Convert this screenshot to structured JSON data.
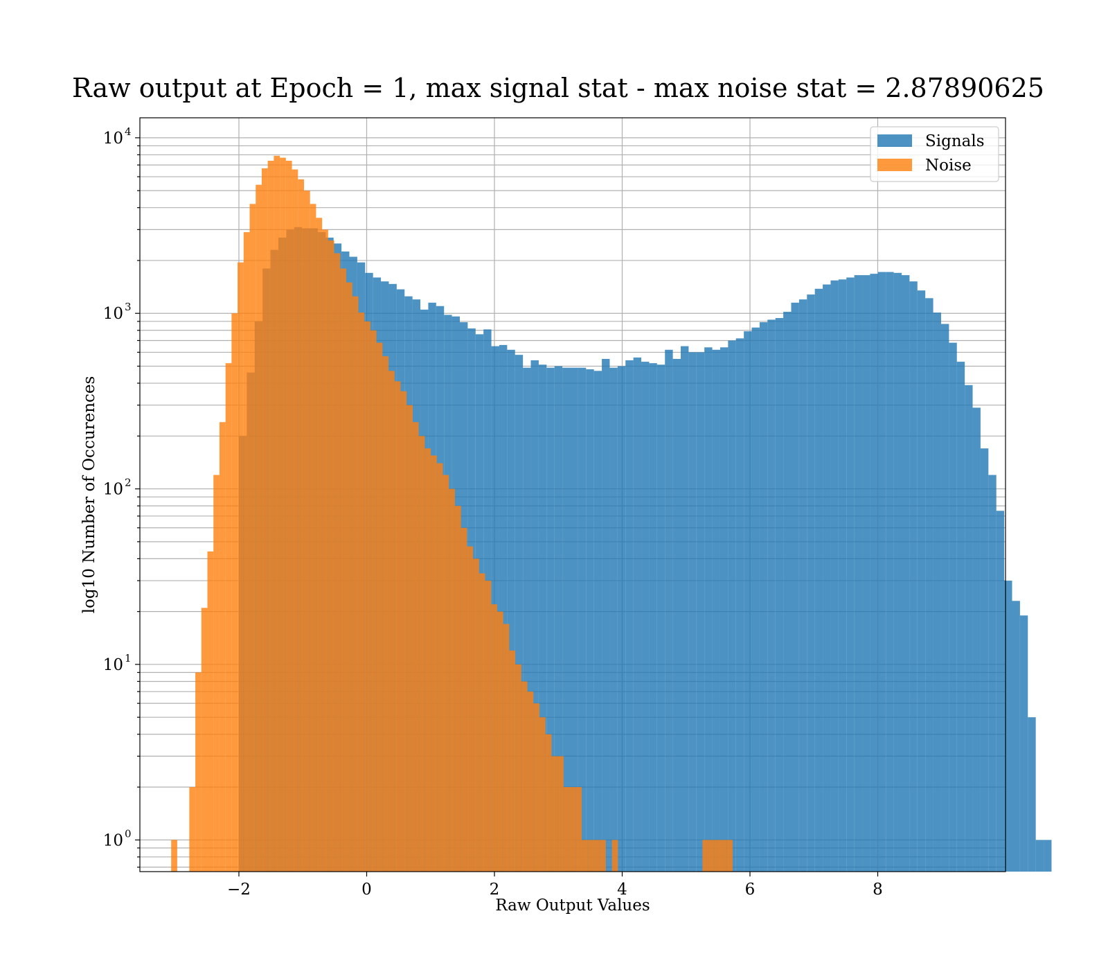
{
  "chart_data": {
    "type": "histogram",
    "title": "Raw output at Epoch = 1, max signal stat - max noise stat = 2.87890625",
    "xlabel": "Raw Output Values",
    "ylabel": "log10 Number of Occurences",
    "xlim": [
      -3.55,
      10.0
    ],
    "ylim": [
      0.66,
      13000
    ],
    "yscale": "log",
    "grid": true,
    "legend": {
      "position": "top-right"
    },
    "x_ticks": [
      {
        "value": -2,
        "label": "−2"
      },
      {
        "value": 0,
        "label": "0"
      },
      {
        "value": 2,
        "label": "2"
      },
      {
        "value": 4,
        "label": "4"
      },
      {
        "value": 6,
        "label": "6"
      },
      {
        "value": 8,
        "label": "8"
      }
    ],
    "y_ticks": [
      {
        "value": 1,
        "base": "10",
        "exp": "0"
      },
      {
        "value": 10,
        "base": "10",
        "exp": "1"
      },
      {
        "value": 100,
        "base": "10",
        "exp": "2"
      },
      {
        "value": 1000,
        "base": "10",
        "exp": "3"
      },
      {
        "value": 10000,
        "base": "10",
        "exp": "4"
      }
    ],
    "series": [
      {
        "name": "Signals",
        "color": "#1f77b4",
        "alpha": 0.8,
        "bin_start": -2.0,
        "bin_width": 0.1235,
        "values": [
          200,
          460,
          900,
          1800,
          2300,
          2700,
          3000,
          3100,
          3050,
          3050,
          2900,
          2700,
          2500,
          2250,
          2100,
          1950,
          1700,
          1600,
          1520,
          1470,
          1370,
          1250,
          1200,
          1050,
          1150,
          1100,
          980,
          960,
          890,
          820,
          760,
          810,
          650,
          660,
          620,
          580,
          490,
          540,
          510,
          490,
          500,
          490,
          490,
          490,
          480,
          470,
          550,
          490,
          500,
          540,
          560,
          530,
          520,
          510,
          620,
          550,
          650,
          600,
          600,
          640,
          620,
          640,
          700,
          720,
          790,
          830,
          890,
          920,
          940,
          1020,
          1150,
          1200,
          1280,
          1380,
          1460,
          1540,
          1560,
          1600,
          1650,
          1650,
          1680,
          1720,
          1720,
          1700,
          1650,
          1520,
          1350,
          1220,
          1010,
          870,
          680,
          530,
          390,
          290,
          170,
          120,
          75,
          30,
          23,
          19,
          5,
          1,
          1
        ]
      },
      {
        "name": "Noise",
        "color": "#ff7f0e",
        "alpha": 0.8,
        "bin_start": -3.06,
        "bin_width": 0.0945,
        "values": [
          1,
          0,
          0,
          2,
          9,
          21,
          44,
          120,
          240,
          520,
          1000,
          1950,
          2900,
          4200,
          5400,
          6700,
          7400,
          7900,
          7700,
          7400,
          6600,
          5800,
          5000,
          4200,
          3500,
          3000,
          2600,
          2200,
          1800,
          1500,
          1250,
          1010,
          900,
          800,
          680,
          570,
          470,
          410,
          360,
          300,
          240,
          200,
          170,
          155,
          140,
          120,
          100,
          80,
          60,
          47,
          40,
          33,
          30,
          22,
          20,
          17,
          12,
          10,
          8,
          7,
          6,
          5,
          4,
          3,
          3,
          2,
          2,
          2,
          1,
          1,
          1,
          1,
          0,
          1,
          0,
          0,
          0,
          0,
          0,
          0,
          0,
          0,
          0,
          0,
          0,
          0,
          0,
          0,
          1,
          1,
          1,
          1,
          1
        ]
      }
    ]
  }
}
